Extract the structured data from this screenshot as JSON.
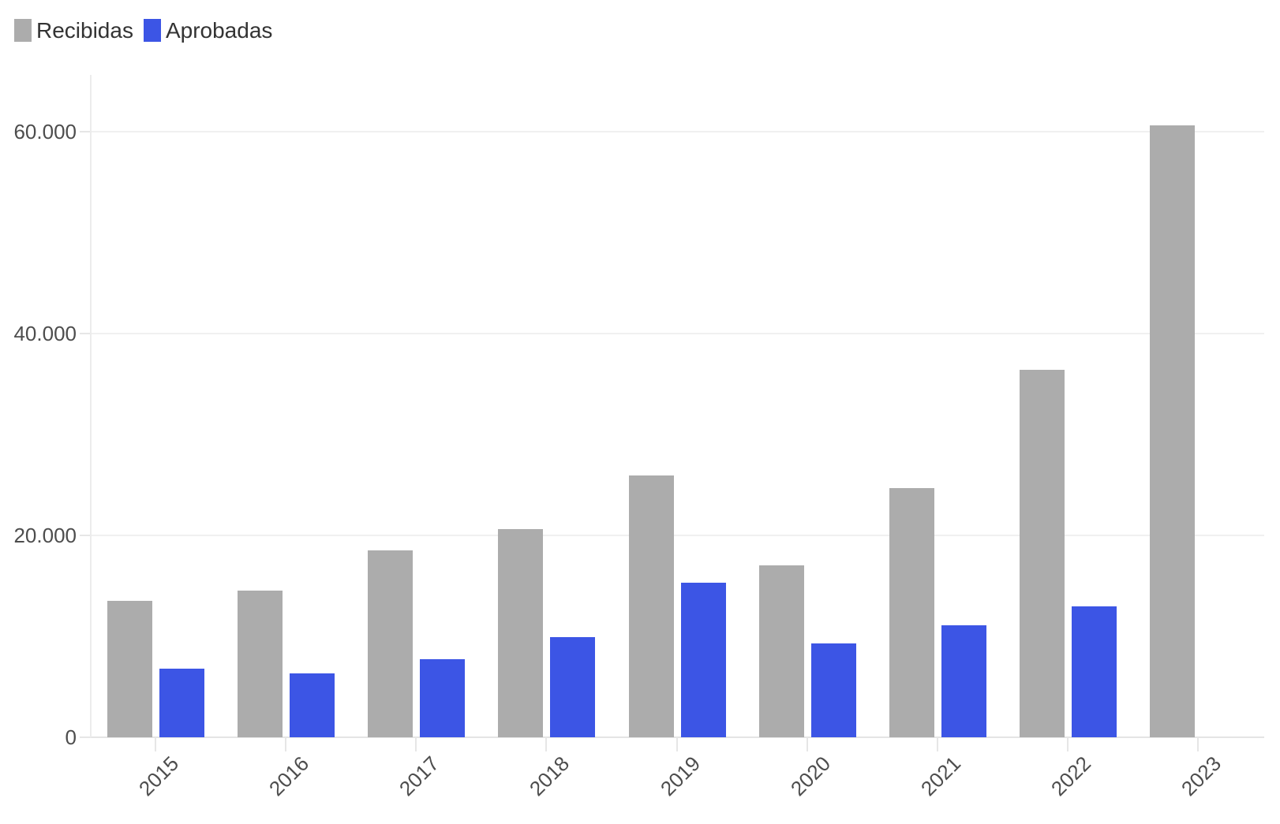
{
  "legend": {
    "items": [
      {
        "label": "Recibidas",
        "color": "#acacac"
      },
      {
        "label": "Aprobadas",
        "color": "#3c55e5"
      }
    ]
  },
  "chart_data": {
    "type": "bar",
    "title": "",
    "xlabel": "",
    "ylabel": "",
    "categories": [
      "2015",
      "2016",
      "2017",
      "2018",
      "2019",
      "2020",
      "2021",
      "2022",
      "2023"
    ],
    "series": [
      {
        "name": "Recibidas",
        "color": "#acacac",
        "values": [
          13500,
          14500,
          18500,
          20600,
          25900,
          17000,
          24700,
          36400,
          60600
        ]
      },
      {
        "name": "Aprobadas",
        "color": "#3c55e5",
        "values": [
          6800,
          6300,
          7700,
          9900,
          15300,
          9300,
          11100,
          13000,
          null
        ]
      }
    ],
    "ylim": [
      0,
      66000
    ],
    "yticks": [
      {
        "value": 0,
        "label": "0"
      },
      {
        "value": 20000,
        "label": "20.000"
      },
      {
        "value": 40000,
        "label": "40.000"
      },
      {
        "value": 60000,
        "label": "60.000"
      }
    ],
    "grid": true,
    "legend_position": "top-left",
    "colors": {
      "grid": "#f0f0f0",
      "axis": "#e6e6e6",
      "tick_text": "#4d4d4d"
    }
  }
}
